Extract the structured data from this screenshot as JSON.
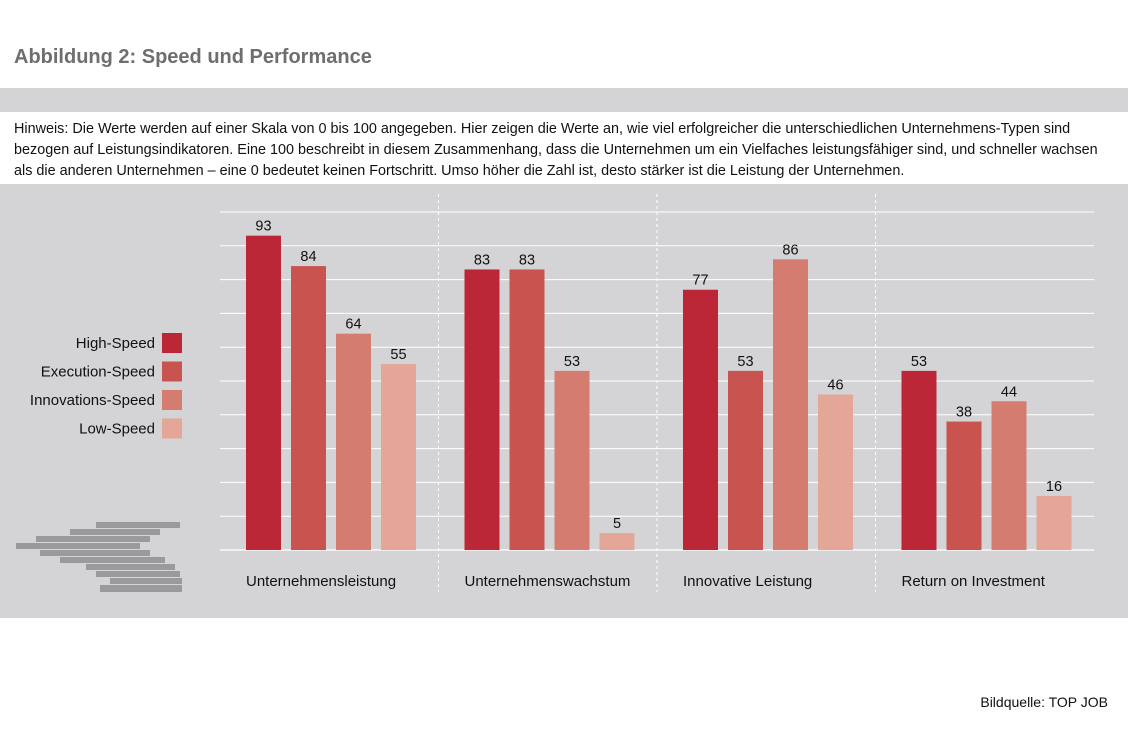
{
  "header": {
    "title": "Abbildung 2: Speed und Performance"
  },
  "note": {
    "text": "Hinweis: Die Werte werden auf einer Skala von 0 bis 100 angegeben. Hier zeigen die Werte an, wie viel erfolgreicher die unterschiedlichen Unternehmens-Typen sind bezogen auf Leistungsindikatoren. Eine 100 beschreibt in diesem Zusammenhang, dass die Unternehmen um ein Vielfaches leistungsfähiger sind, und schneller wachsen als die anderen Unternehmen – eine 0 bedeutet keinen Fortschritt. Umso höher die Zahl ist, desto stärker ist die Leistung der Unternehmen."
  },
  "footer": {
    "credit": "Bildquelle: TOP JOB"
  },
  "colors": {
    "background_panel": "#d4d4d6",
    "High-Speed": "#bb2737",
    "Execution-Speed": "#c8534f",
    "Innovations-Speed": "#d47c70",
    "Low-Speed": "#e3a697"
  },
  "chart_data": {
    "type": "bar",
    "categories": [
      "Unternehmensleistung",
      "Unternehmenswachstum",
      "Innovative Leistung",
      "Return on Investment"
    ],
    "series": [
      {
        "name": "High-Speed",
        "values": [
          93,
          83,
          77,
          53
        ]
      },
      {
        "name": "Execution-Speed",
        "values": [
          84,
          83,
          53,
          38
        ]
      },
      {
        "name": "Innovations-Speed",
        "values": [
          64,
          53,
          86,
          44
        ]
      },
      {
        "name": "Low-Speed",
        "values": [
          55,
          5,
          46,
          16
        ]
      }
    ],
    "ylim": [
      0,
      100
    ],
    "grid": true,
    "legend_position": "left",
    "data_labels": true
  }
}
